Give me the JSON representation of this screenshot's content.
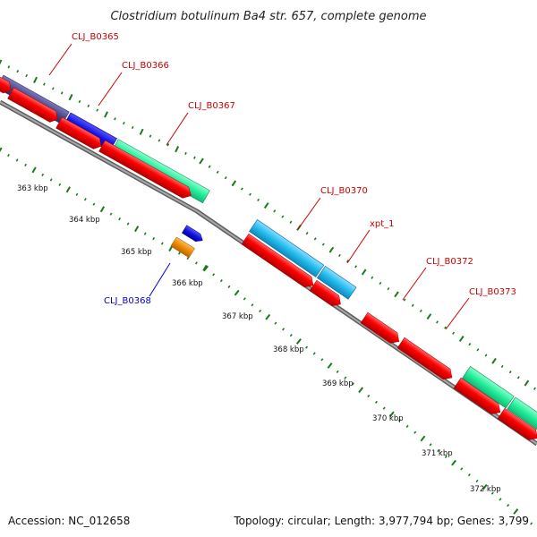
{
  "title": "Clostridium botulinum Ba4 str. 657, complete genome",
  "footer": {
    "accession": "Accession: NC_012658",
    "info": "Topology: circular; Length: 3,977,794 bp; Genes: 3,799"
  },
  "colors": {
    "backbone": "#8a8a8a",
    "tick": "#1a7a1a",
    "cds_forward": "#ff0000",
    "label_red": "#cc0000",
    "label_blue": "#0000cc"
  },
  "scale_labels": [
    "363 kbp",
    "364 kbp",
    "365 kbp",
    "366 kbp",
    "367 kbp",
    "368 kbp",
    "369 kbp",
    "370 kbp",
    "371 kbp",
    "372 kbp"
  ],
  "gene_labels": [
    {
      "text": "CLJ_B0365",
      "color": "#cc0000"
    },
    {
      "text": "CLJ_B0366",
      "color": "#cc0000"
    },
    {
      "text": "CLJ_B0367",
      "color": "#cc0000"
    },
    {
      "text": "CLJ_B0370",
      "color": "#cc0000"
    },
    {
      "text": "xpt_1",
      "color": "#cc0000"
    },
    {
      "text": "CLJ_B0372",
      "color": "#cc0000"
    },
    {
      "text": "CLJ_B0373",
      "color": "#cc0000"
    },
    {
      "text": "CLJ_B0368",
      "color": "#0000cc"
    }
  ],
  "feature_colors": {
    "cog_navy": "#4a4a8c",
    "cog_blue": "#1010dd",
    "cog_green": "#22ee99",
    "cog_cyan": "#22bbee",
    "cog_orange": "#ee8800",
    "cds_red": "#ff0000"
  }
}
